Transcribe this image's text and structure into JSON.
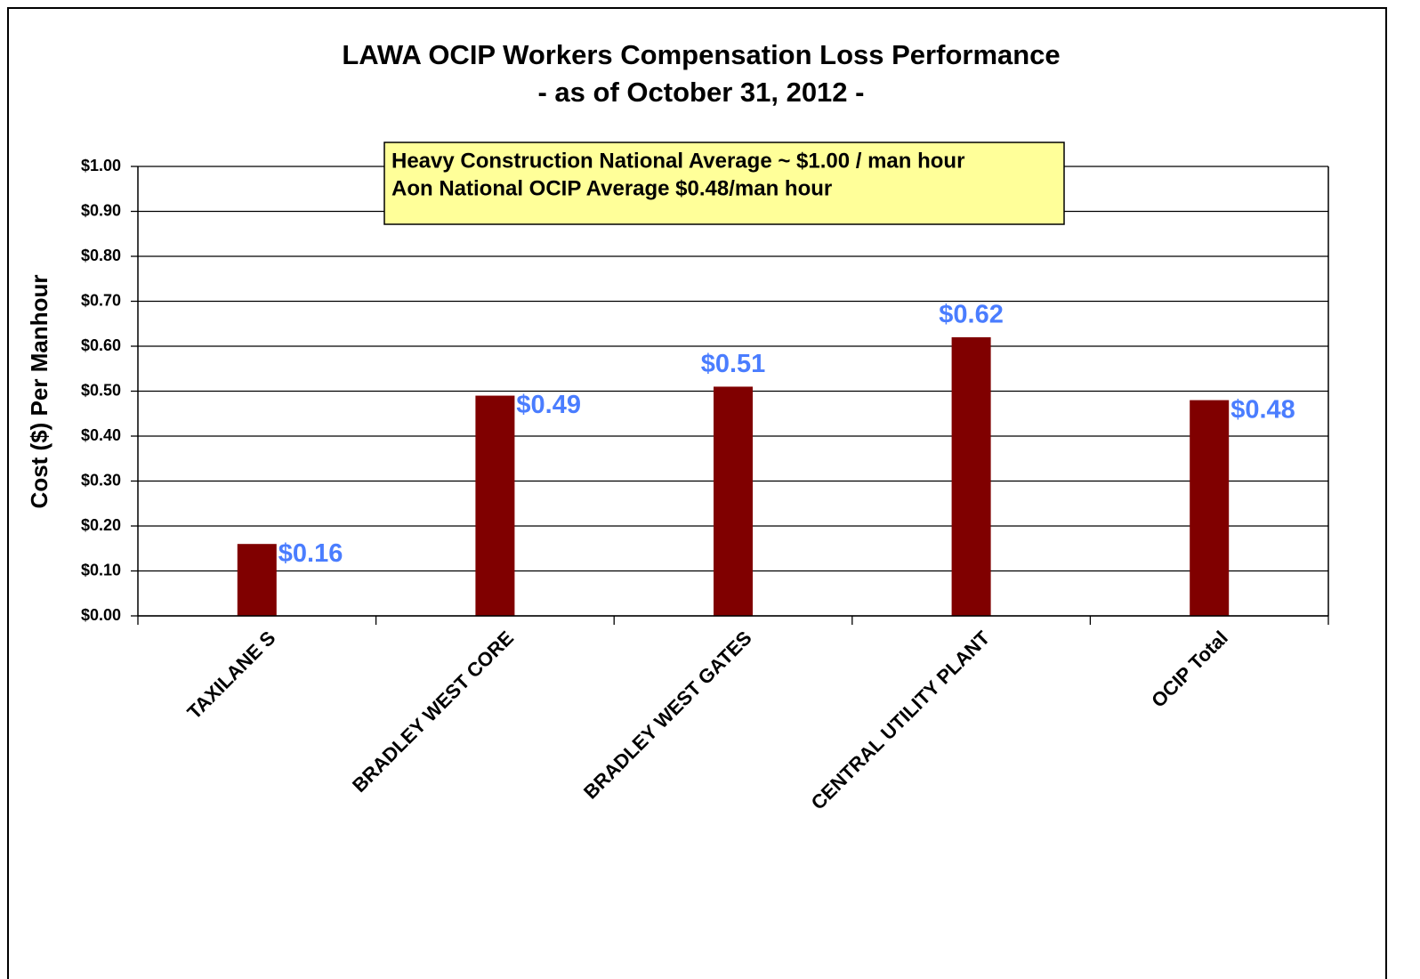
{
  "chart_data": {
    "type": "bar",
    "title": "LAWA OCIP Workers Compensation Loss Performance",
    "subtitle": "- as of October 31, 2012 -",
    "y_label": "Cost ($) Per Manhour",
    "annotations": [
      "Heavy Construction National Average ~ $1.00 / man hour",
      "Aon National OCIP Average $0.48/man hour"
    ],
    "categories": [
      "TAXILANE S",
      "BRADLEY WEST CORE",
      "BRADLEY WEST GATES",
      "CENTRAL UTILITY PLANT",
      "OCIP Total"
    ],
    "values": [
      0.16,
      0.49,
      0.51,
      0.62,
      0.48
    ],
    "value_labels": [
      "$0.16",
      "$0.49",
      "$0.51",
      "$0.62",
      "$0.48"
    ],
    "color": "#800000",
    "label_color": "#4a7dff",
    "ylim": [
      0,
      1
    ],
    "yticks": [
      {
        "value": 0,
        "label": "$0.00"
      },
      {
        "value": 0.1,
        "label": "$0.10"
      },
      {
        "value": 0.2,
        "label": "$0.20"
      },
      {
        "value": 0.3,
        "label": "$0.30"
      },
      {
        "value": 0.4,
        "label": "$0.40"
      },
      {
        "value": 0.5,
        "label": "$0.50"
      },
      {
        "value": 0.6,
        "label": "$0.60"
      },
      {
        "value": 0.7,
        "label": "$0.70"
      },
      {
        "value": 0.8,
        "label": "$0.80"
      },
      {
        "value": 0.9,
        "label": "$0.90"
      },
      {
        "value": 1,
        "label": "$1.00"
      }
    ],
    "grid": true
  }
}
